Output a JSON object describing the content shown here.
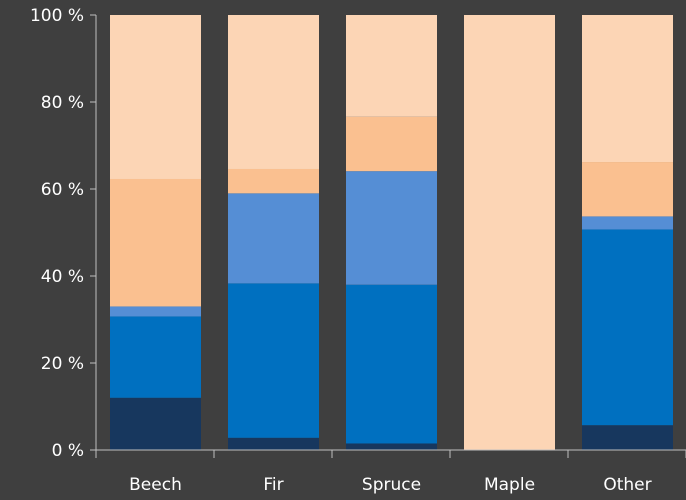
{
  "chart_data": {
    "type": "bar",
    "stacked": true,
    "normalized": true,
    "categories": [
      "Beech",
      "Fir",
      "Spruce",
      "Maple",
      "Other"
    ],
    "series": [
      {
        "color": "#17375e",
        "values": [
          12.0,
          2.8,
          1.5,
          0.0,
          5.7
        ]
      },
      {
        "color": "#0070c0",
        "values": [
          18.7,
          35.5,
          36.5,
          0.0,
          45.0
        ]
      },
      {
        "color": "#558ed5",
        "values": [
          2.3,
          20.7,
          26.1,
          0.0,
          3.0
        ]
      },
      {
        "color": "#fac090",
        "values": [
          29.3,
          5.6,
          12.5,
          0.0,
          12.5
        ]
      },
      {
        "color": "#fcd5b5",
        "values": [
          37.7,
          35.4,
          23.4,
          100.0,
          33.8
        ]
      }
    ],
    "y_ticks": [
      "0 %",
      "20 %",
      "40 %",
      "60 %",
      "80 %",
      "100 %"
    ],
    "ylim": [
      0,
      100
    ],
    "grid": false,
    "legend": "none",
    "background_color": "#3f3f3f",
    "axis_color": "#bfbfbf",
    "text_color": "#ffffff"
  }
}
